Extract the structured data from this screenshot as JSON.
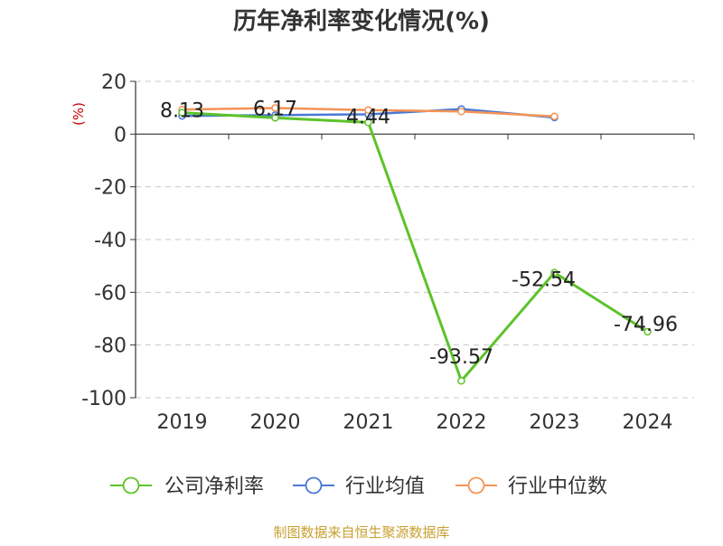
{
  "chart_data": {
    "type": "line",
    "title": "历年净利率变化情况(%)",
    "ylabel": "(%)",
    "xlabel": "",
    "categories": [
      "2019",
      "2020",
      "2021",
      "2022",
      "2023",
      "2024"
    ],
    "ylim": [
      -100,
      20
    ],
    "yticks": [
      20,
      0,
      -20,
      -40,
      -60,
      -80,
      -100
    ],
    "grid": true,
    "legend_position": "bottom",
    "series": [
      {
        "name": "公司净利率",
        "color": "#5cc32a",
        "values": [
          8.13,
          6.17,
          4.44,
          -93.57,
          -52.54,
          -74.96
        ],
        "data_labels": [
          "8.13",
          "6.17",
          "4.44",
          "-93.57",
          "-52.54",
          "-74.96"
        ]
      },
      {
        "name": "行业均值",
        "color": "#4a78d6",
        "values": [
          6.9,
          7.2,
          7.5,
          9.5,
          6.3,
          null
        ]
      },
      {
        "name": "行业中位数",
        "color": "#f59456",
        "values": [
          9.3,
          9.9,
          9.1,
          8.6,
          6.7,
          null
        ]
      }
    ]
  },
  "footer": {
    "source_text": "制图数据来自恒生聚源数据库",
    "source_color": "#c8a030"
  }
}
